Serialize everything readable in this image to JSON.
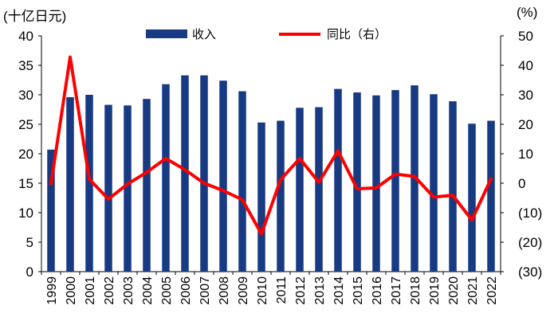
{
  "units": {
    "left": "(十亿日元)",
    "right": "(%)"
  },
  "legend": {
    "bar": "收入",
    "line": "同比（右）"
  },
  "colors": {
    "bar": "#173a83",
    "line": "#ff0000",
    "axis": "#000000"
  },
  "chart_data": {
    "type": "bar",
    "categories": [
      "1999",
      "2000",
      "2001",
      "2002",
      "2003",
      "2004",
      "2005",
      "2006",
      "2007",
      "2008",
      "2009",
      "2010",
      "2011",
      "2012",
      "2013",
      "2014",
      "2015",
      "2016",
      "2017",
      "2018",
      "2019",
      "2020",
      "2021",
      "2022"
    ],
    "series": [
      {
        "name": "收入",
        "type": "bar",
        "axis": "left",
        "values": [
          20.7,
          29.6,
          30.0,
          28.3,
          28.2,
          29.3,
          31.8,
          33.3,
          33.3,
          32.4,
          30.6,
          25.3,
          25.6,
          27.8,
          27.9,
          31.0,
          30.4,
          29.9,
          30.8,
          31.6,
          30.1,
          28.9,
          25.1,
          25.6
        ]
      },
      {
        "name": "同比（右）",
        "type": "line",
        "axis": "right",
        "values": [
          -0.2,
          42.8,
          1.4,
          -5.4,
          -0.3,
          3.7,
          8.4,
          4.6,
          0.0,
          -2.5,
          -5.6,
          -17.2,
          1.2,
          8.4,
          0.3,
          11.0,
          -1.9,
          -1.6,
          3.1,
          2.3,
          -4.7,
          -4.1,
          -12.5,
          1.5
        ]
      }
    ],
    "y_left": {
      "min": 0,
      "max": 40,
      "ticks": [
        "0",
        "5",
        "10",
        "15",
        "20",
        "25",
        "30",
        "35",
        "40"
      ]
    },
    "y_right": {
      "min": -30,
      "max": 50,
      "ticks": [
        "(30)",
        "(20)",
        "(10)",
        "0",
        "10",
        "20",
        "30",
        "40",
        "50"
      ]
    },
    "grid": false,
    "legend_position": "top-center"
  }
}
